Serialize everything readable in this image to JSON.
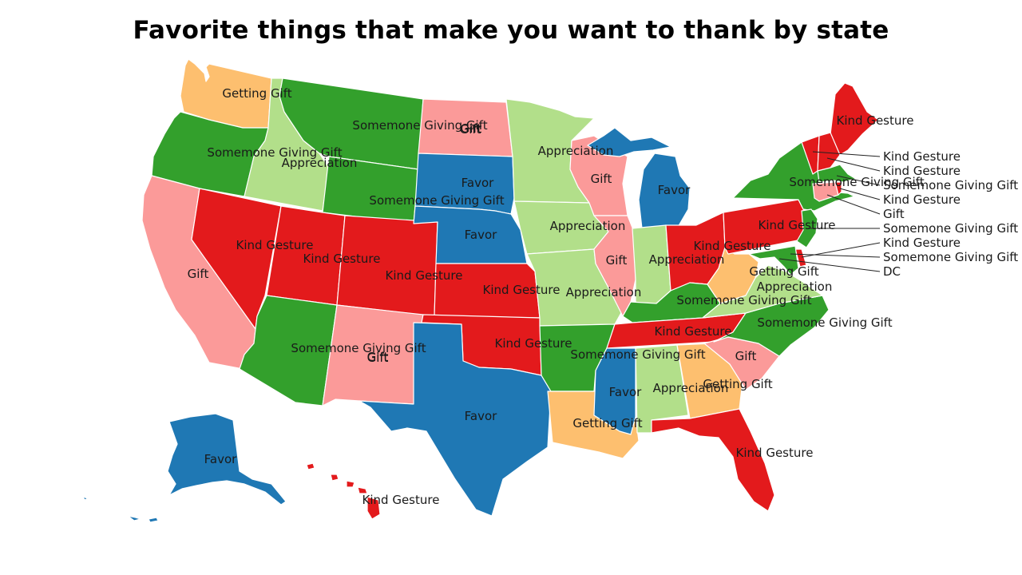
{
  "title": "Favorite things that make you want to thank by state",
  "legend_colors": {
    "Favor": "#1f78b4",
    "Appreciation": "#b2df8a",
    "Somemone Giving Gift": "#33a02c",
    "Gift": "#fb9a99",
    "Kind Gesture": "#e31a1c",
    "Getting Gift": "#fdbf6f"
  },
  "states": [
    {
      "id": "WA",
      "answer": "Getting Gift"
    },
    {
      "id": "OR",
      "answer": "Somemone Giving Gift"
    },
    {
      "id": "CA",
      "answer": "Gift"
    },
    {
      "id": "ID",
      "answer": "Appreciation"
    },
    {
      "id": "NV",
      "answer": "Kind Gesture"
    },
    {
      "id": "MT",
      "answer": "Somemone Giving Gift"
    },
    {
      "id": "WY",
      "answer": "Somemone Giving Gift"
    },
    {
      "id": "UT",
      "answer": "Kind Gesture"
    },
    {
      "id": "AZ",
      "answer": "Somemone Giving Gift"
    },
    {
      "id": "CO",
      "answer": "Kind Gesture"
    },
    {
      "id": "NM",
      "answer": "Gift"
    },
    {
      "id": "ND",
      "answer": "Gift"
    },
    {
      "id": "SD",
      "answer": "Favor"
    },
    {
      "id": "NE",
      "answer": "Favor"
    },
    {
      "id": "KS",
      "answer": "Kind Gesture"
    },
    {
      "id": "OK",
      "answer": "Kind Gesture"
    },
    {
      "id": "TX",
      "answer": "Favor"
    },
    {
      "id": "MN",
      "answer": "Appreciation"
    },
    {
      "id": "IA",
      "answer": "Appreciation"
    },
    {
      "id": "MO",
      "answer": "Appreciation"
    },
    {
      "id": "AR",
      "answer": "Somemone Giving Gift"
    },
    {
      "id": "LA",
      "answer": "Getting Gift"
    },
    {
      "id": "WI",
      "answer": "Gift"
    },
    {
      "id": "IL",
      "answer": "Gift"
    },
    {
      "id": "MI",
      "answer": "Favor"
    },
    {
      "id": "IN",
      "answer": "Appreciation"
    },
    {
      "id": "OH",
      "answer": "Kind Gesture"
    },
    {
      "id": "KY",
      "answer": "Somemone Giving Gift"
    },
    {
      "id": "TN",
      "answer": "Kind Gesture"
    },
    {
      "id": "MS",
      "answer": "Favor"
    },
    {
      "id": "AL",
      "answer": "Appreciation"
    },
    {
      "id": "GA",
      "answer": "Getting Gift"
    },
    {
      "id": "FL",
      "answer": "Kind Gesture"
    },
    {
      "id": "SC",
      "answer": "Gift"
    },
    {
      "id": "NC",
      "answer": "Somemone Giving Gift"
    },
    {
      "id": "VA",
      "answer": "Appreciation"
    },
    {
      "id": "WV",
      "answer": "Getting Gift"
    },
    {
      "id": "PA",
      "answer": "Kind Gesture"
    },
    {
      "id": "NY",
      "answer": "Somemone Giving Gift"
    },
    {
      "id": "ME",
      "answer": "Kind Gesture"
    },
    {
      "id": "VT",
      "answer": "Kind Gesture"
    },
    {
      "id": "NH",
      "answer": "Kind Gesture"
    },
    {
      "id": "MA",
      "answer": "Somemone Giving Gift"
    },
    {
      "id": "RI",
      "answer": "Kind Gesture"
    },
    {
      "id": "CT",
      "answer": "Gift"
    },
    {
      "id": "NJ",
      "answer": "Somemone Giving Gift"
    },
    {
      "id": "DE",
      "answer": "Kind Gesture"
    },
    {
      "id": "MD",
      "answer": "Somemone Giving Gift"
    },
    {
      "id": "DC",
      "answer": "DC"
    },
    {
      "id": "AK",
      "answer": "Favor"
    },
    {
      "id": "HI",
      "answer": "Kind Gesture"
    }
  ],
  "map_labels": [
    {
      "id": "WA",
      "text": "Getting Gift"
    },
    {
      "id": "OR",
      "text": "Somemone Giving Gift"
    },
    {
      "id": "CA",
      "text": "Gift"
    },
    {
      "id": "ID",
      "text": "Appreciation"
    },
    {
      "id": "NV",
      "text": "Kind Gesture"
    },
    {
      "id": "MT",
      "text": "Somemone Giving Gift"
    },
    {
      "id": "WY",
      "text": "Somemone Giving Gift"
    },
    {
      "id": "UT",
      "text": "Kind Gesture"
    },
    {
      "id": "AZ",
      "text": "Somemone Giving Gift"
    },
    {
      "id": "CO",
      "text": "Kind Gesture"
    },
    {
      "id": "NM",
      "text": "Gift"
    },
    {
      "id": "ND",
      "text": "Gift"
    },
    {
      "id": "SD",
      "text": "Favor"
    },
    {
      "id": "NE",
      "text": "Favor"
    },
    {
      "id": "KS",
      "text": "Kind Gesture"
    },
    {
      "id": "OK",
      "text": "Kind Gesture"
    },
    {
      "id": "TX",
      "text": "Favor"
    },
    {
      "id": "MN",
      "text": "Appreciation"
    },
    {
      "id": "IA",
      "text": "Appreciation"
    },
    {
      "id": "MO",
      "text": "Appreciation"
    },
    {
      "id": "AR",
      "text": "Somemone Giving Gift"
    },
    {
      "id": "LA",
      "text": "Getting Gift"
    },
    {
      "id": "WI",
      "text": "Gift"
    },
    {
      "id": "IL",
      "text": "Gift"
    },
    {
      "id": "MI",
      "text": "Favor"
    },
    {
      "id": "IN",
      "text": "Appreciation"
    },
    {
      "id": "OH",
      "text": "Kind Gesture"
    },
    {
      "id": "KY",
      "text": "Somemone Giving Gift"
    },
    {
      "id": "TN",
      "text": "Kind Gesture"
    },
    {
      "id": "MS",
      "text": "Favor"
    },
    {
      "id": "AL",
      "text": "Appreciation"
    },
    {
      "id": "GA",
      "text": "Getting Gift"
    },
    {
      "id": "FL",
      "text": "Kind Gesture"
    },
    {
      "id": "SC",
      "text": "Gift"
    },
    {
      "id": "NC",
      "text": "Somemone Giving Gift"
    },
    {
      "id": "VA",
      "text": "Appreciation"
    },
    {
      "id": "WV",
      "text": "Getting Gift"
    },
    {
      "id": "PA",
      "text": "Kind Gesture"
    },
    {
      "id": "NY",
      "text": "Somemone Giving Gift"
    },
    {
      "id": "ME",
      "text": "Kind Gesture"
    },
    {
      "id": "AK",
      "text": "Favor"
    },
    {
      "id": "HI",
      "text": "Kind Gesture"
    },
    {
      "id": "MT-extra",
      "text": "Gift"
    },
    {
      "id": "NM-extra",
      "text": "Gift"
    }
  ],
  "callouts": [
    {
      "id": "VT",
      "text": "Kind Gesture"
    },
    {
      "id": "NH",
      "text": "Kind Gesture"
    },
    {
      "id": "MA",
      "text": "Somemone Giving Gift"
    },
    {
      "id": "RI",
      "text": "Kind Gesture"
    },
    {
      "id": "CT",
      "text": "Gift"
    },
    {
      "id": "NJ",
      "text": "Somemone Giving Gift"
    },
    {
      "id": "DE",
      "text": "Kind Gesture"
    },
    {
      "id": "MD",
      "text": "Somemone Giving Gift"
    },
    {
      "id": "DC",
      "text": "DC"
    }
  ]
}
